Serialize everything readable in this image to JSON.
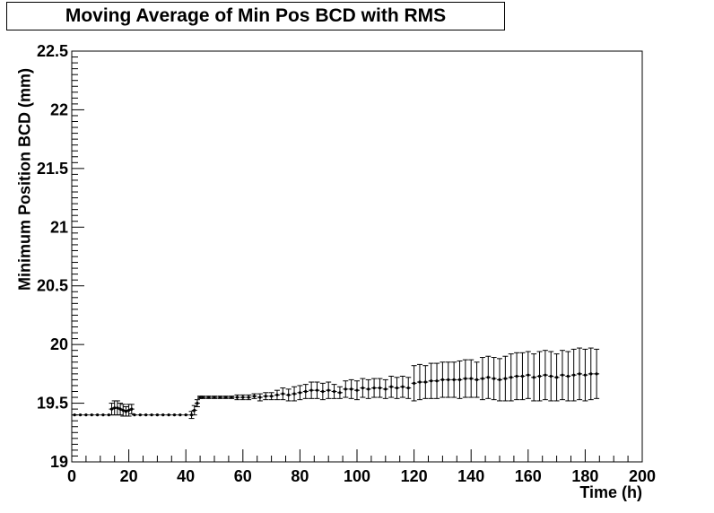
{
  "chart_data": {
    "type": "scatter",
    "title": "Moving Average of Min Pos BCD with RMS",
    "xlabel": "Time (h)",
    "ylabel": "Minimum Position BCD (mm)",
    "xlim": [
      0,
      200
    ],
    "ylim": [
      19,
      22.5
    ],
    "x_ticks": [
      "0",
      "20",
      "40",
      "60",
      "80",
      "100",
      "120",
      "140",
      "160",
      "180",
      "200"
    ],
    "y_ticks": [
      "19",
      "19.5",
      "20",
      "20.5",
      "21",
      "21.5",
      "22",
      "22.5"
    ],
    "grid": false,
    "legend": "none",
    "series": [
      {
        "x": [
          1,
          3,
          5,
          7,
          9,
          11,
          13,
          14,
          15,
          16,
          17,
          18,
          19,
          20,
          21,
          22,
          24,
          26,
          28,
          30,
          32,
          34,
          36,
          38,
          40,
          42,
          43,
          44,
          45,
          46,
          48,
          50,
          52,
          54,
          56,
          58,
          60,
          62,
          64,
          66,
          68,
          70,
          72,
          74,
          76,
          78,
          80,
          82,
          84,
          86,
          88,
          90,
          92,
          94,
          96,
          98,
          100,
          102,
          104,
          106,
          108,
          110,
          112,
          114,
          116,
          118,
          120,
          122,
          124,
          126,
          128,
          130,
          132,
          134,
          136,
          138,
          140,
          142,
          144,
          146,
          148,
          150,
          152,
          154,
          156,
          158,
          160,
          162,
          164,
          166,
          168,
          170,
          172,
          174,
          176,
          178,
          180,
          182,
          184
        ],
        "y": [
          19.4,
          19.4,
          19.4,
          19.4,
          19.4,
          19.4,
          19.4,
          19.45,
          19.46,
          19.46,
          19.45,
          19.44,
          19.43,
          19.44,
          19.45,
          19.4,
          19.4,
          19.4,
          19.4,
          19.4,
          19.4,
          19.4,
          19.4,
          19.4,
          19.4,
          19.4,
          19.44,
          19.5,
          19.55,
          19.55,
          19.55,
          19.55,
          19.55,
          19.55,
          19.55,
          19.55,
          19.55,
          19.55,
          19.56,
          19.55,
          19.56,
          19.56,
          19.57,
          19.58,
          19.57,
          19.58,
          19.59,
          19.6,
          19.61,
          19.61,
          19.6,
          19.61,
          19.6,
          19.59,
          19.62,
          19.62,
          19.61,
          19.63,
          19.62,
          19.63,
          19.63,
          19.62,
          19.64,
          19.63,
          19.64,
          19.63,
          19.67,
          19.68,
          19.68,
          19.69,
          19.69,
          19.7,
          19.7,
          19.7,
          19.7,
          19.71,
          19.71,
          19.7,
          19.71,
          19.72,
          19.71,
          19.7,
          19.71,
          19.72,
          19.73,
          19.73,
          19.74,
          19.72,
          19.73,
          19.74,
          19.73,
          19.72,
          19.74,
          19.73,
          19.74,
          19.75,
          19.74,
          19.75,
          19.75
        ],
        "rms": [
          0,
          0,
          0,
          0,
          0,
          0,
          0,
          0.05,
          0.06,
          0.06,
          0.05,
          0.05,
          0.04,
          0.05,
          0.04,
          0,
          0,
          0,
          0,
          0,
          0,
          0,
          0,
          0,
          0,
          0.03,
          0.04,
          0.03,
          0.01,
          0.01,
          0.01,
          0.01,
          0.01,
          0.01,
          0.01,
          0.02,
          0.02,
          0.02,
          0.02,
          0.03,
          0.03,
          0.03,
          0.04,
          0.05,
          0.05,
          0.06,
          0.06,
          0.06,
          0.07,
          0.07,
          0.07,
          0.07,
          0.06,
          0.05,
          0.07,
          0.08,
          0.08,
          0.08,
          0.08,
          0.08,
          0.08,
          0.08,
          0.09,
          0.09,
          0.09,
          0.09,
          0.15,
          0.15,
          0.14,
          0.15,
          0.15,
          0.15,
          0.15,
          0.15,
          0.16,
          0.16,
          0.16,
          0.15,
          0.18,
          0.18,
          0.18,
          0.18,
          0.19,
          0.2,
          0.2,
          0.2,
          0.2,
          0.2,
          0.21,
          0.21,
          0.21,
          0.2,
          0.21,
          0.21,
          0.22,
          0.22,
          0.22,
          0.22,
          0.21
        ]
      }
    ]
  }
}
